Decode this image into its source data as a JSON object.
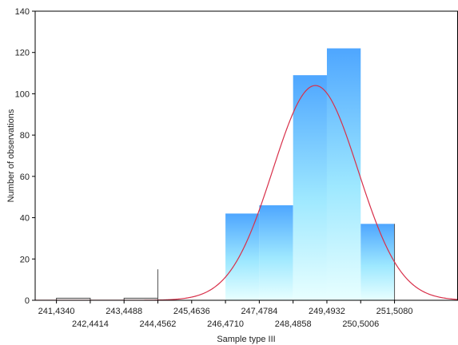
{
  "chart_data": {
    "type": "bar",
    "subtype": "histogram-with-normal-fit",
    "xlabel": "Sample type III",
    "ylabel": "Number of observations",
    "ylim": [
      0,
      140
    ],
    "yticks": [
      0,
      20,
      40,
      60,
      80,
      100,
      120,
      140
    ],
    "xlim": [
      240.8,
      253.4
    ],
    "xticks": [
      {
        "value": 241.434,
        "label": "241,4340"
      },
      {
        "value": 242.4414,
        "label": "242,4414"
      },
      {
        "value": 243.4488,
        "label": "243,4488"
      },
      {
        "value": 244.4562,
        "label": "244,4562"
      },
      {
        "value": 245.4636,
        "label": "245,4636"
      },
      {
        "value": 246.471,
        "label": "246,4710"
      },
      {
        "value": 247.4784,
        "label": "247,4784"
      },
      {
        "value": 248.4858,
        "label": "248,4858"
      },
      {
        "value": 249.4932,
        "label": "249,4932"
      },
      {
        "value": 250.5006,
        "label": "250,5006"
      },
      {
        "value": 251.508,
        "label": "251,5080"
      }
    ],
    "bins": [
      {
        "from": 241.434,
        "to": 242.4414,
        "count": 1
      },
      {
        "from": 242.4414,
        "to": 243.4488,
        "count": 0
      },
      {
        "from": 243.4488,
        "to": 244.4562,
        "count": 1
      },
      {
        "from": 244.4562,
        "to": 245.4636,
        "count": 0
      },
      {
        "from": 245.4636,
        "to": 246.471,
        "count": 0
      },
      {
        "from": 246.471,
        "to": 247.4784,
        "count": 42
      },
      {
        "from": 247.4784,
        "to": 248.4858,
        "count": 46
      },
      {
        "from": 248.4858,
        "to": 249.4932,
        "count": 109
      },
      {
        "from": 249.4932,
        "to": 250.5006,
        "count": 122
      },
      {
        "from": 250.5006,
        "to": 251.508,
        "count": 37
      }
    ],
    "normal_fit": {
      "mean": 249.15,
      "sd": 1.27,
      "peak": 104
    },
    "reference_lines": [
      244.4562,
      251.508
    ],
    "grid": false,
    "legend": "none",
    "colors": {
      "bar_top": "#4ea6ff",
      "bar_bottom": "#e8ffff",
      "bar_mid": "#9ee8ff",
      "fit_curve": "#d8304a",
      "axis": "#000000"
    }
  }
}
